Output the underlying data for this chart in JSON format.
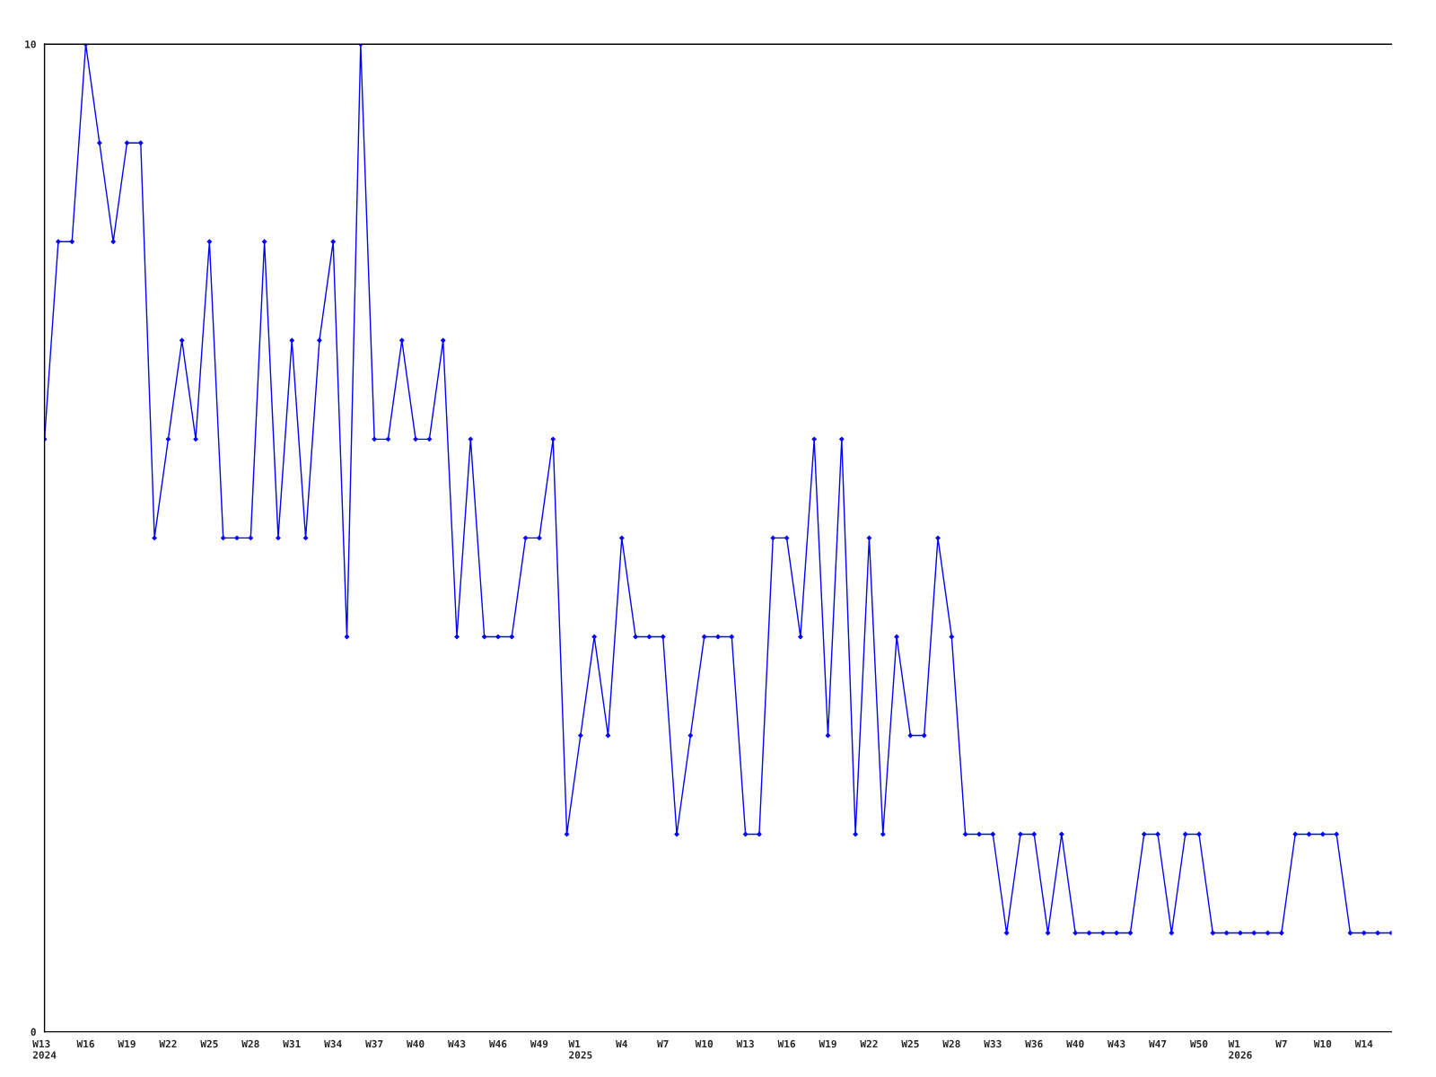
{
  "chart_data": {
    "type": "line",
    "categories": [
      "W13\n2024",
      null,
      null,
      "W16",
      null,
      null,
      "W19",
      null,
      null,
      "W22",
      null,
      null,
      "W25",
      null,
      null,
      "W28",
      null,
      null,
      "W31",
      null,
      null,
      "W34",
      null,
      null,
      "W37",
      null,
      null,
      "W40",
      null,
      null,
      "W43",
      null,
      null,
      "W46",
      null,
      null,
      "W49",
      null,
      null,
      "W1\n2025",
      null,
      null,
      "W4",
      null,
      null,
      "W7",
      null,
      null,
      "W10",
      null,
      null,
      "W13",
      null,
      null,
      "W16",
      null,
      null,
      "W19",
      null,
      null,
      "W22",
      null,
      null,
      "W25",
      null,
      null,
      "W28",
      null,
      null,
      "W33",
      null,
      null,
      "W36",
      null,
      null,
      "W40",
      null,
      null,
      "W43",
      null,
      null,
      "W47",
      null,
      null,
      "W50",
      null,
      null,
      "W1\n2026",
      null,
      null,
      "W7",
      null,
      null,
      "W10",
      null,
      null,
      "W14",
      null,
      null
    ],
    "series": [
      {
        "color": "#0000ff",
        "values": [
          6,
          8,
          8,
          10,
          9,
          8,
          9,
          9,
          5,
          6,
          7,
          6,
          8,
          5,
          5,
          5,
          8,
          5,
          7,
          5,
          7,
          8,
          4,
          10,
          6,
          6,
          7,
          6,
          6,
          7,
          4,
          6,
          4,
          4,
          4,
          5,
          5,
          6,
          2,
          3,
          4,
          3,
          5,
          4,
          4,
          4,
          2,
          3,
          4,
          4,
          4,
          2,
          2,
          5,
          5,
          4,
          6,
          3,
          6,
          2,
          5,
          2,
          4,
          3,
          3,
          5,
          4,
          2,
          2,
          2,
          1,
          2,
          2,
          1,
          2,
          1,
          1,
          1,
          1,
          1,
          2,
          2,
          1,
          2,
          2,
          1,
          1,
          1,
          1,
          1,
          1,
          2,
          2,
          2,
          2,
          1,
          1,
          1,
          1
        ]
      }
    ],
    "ylim": [
      0,
      10
    ],
    "yticks": [
      0,
      10
    ],
    "grid": false,
    "legend": false,
    "marker": "diamond",
    "line_style": "solid"
  }
}
